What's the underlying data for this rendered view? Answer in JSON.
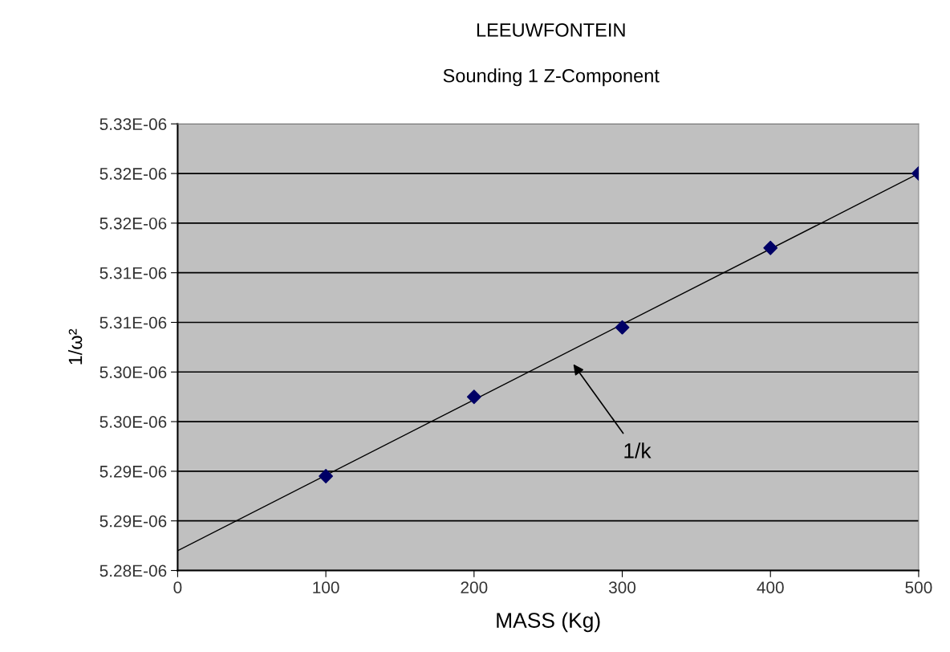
{
  "chart_data": {
    "type": "scatter",
    "title": "LEEUWFONTEIN",
    "subtitle": "Sounding 1 Z-Component",
    "xlabel": "MASS (Kg)",
    "ylabel": "1/ω²",
    "series": [
      {
        "type": "scatter",
        "color": "#000066",
        "x": [
          100,
          200,
          300,
          400,
          500
        ],
        "values": [
          5.2895e-06,
          5.2975e-06,
          5.3045e-06,
          5.3125e-06,
          5.32e-06
        ],
        "marker": "diamond"
      },
      {
        "type": "line",
        "color": "#000000",
        "x": [
          0,
          500
        ],
        "values": [
          5.282e-06,
          5.32e-06
        ],
        "line_style": "solid"
      }
    ],
    "xlim": [
      0,
      500
    ],
    "xticks": [
      0,
      100,
      200,
      300,
      400,
      500
    ],
    "ylim": [
      5.28e-06,
      5.325e-06
    ],
    "yticks": [
      {
        "value": 5.28e-06,
        "label": "5.28E-06"
      },
      {
        "value": 5.285e-06,
        "label": "5.29E-06"
      },
      {
        "value": 5.29e-06,
        "label": "5.29E-06"
      },
      {
        "value": 5.295e-06,
        "label": "5.30E-06"
      },
      {
        "value": 5.3e-06,
        "label": "5.30E-06"
      },
      {
        "value": 5.305e-06,
        "label": "5.31E-06"
      },
      {
        "value": 5.31e-06,
        "label": "5.31E-06"
      },
      {
        "value": 5.315e-06,
        "label": "5.32E-06"
      },
      {
        "value": 5.32e-06,
        "label": "5.32E-06"
      },
      {
        "value": 5.325e-06,
        "label": "5.33E-06"
      }
    ],
    "grid": "y",
    "legend": false,
    "annotations": [
      "1/k"
    ]
  }
}
